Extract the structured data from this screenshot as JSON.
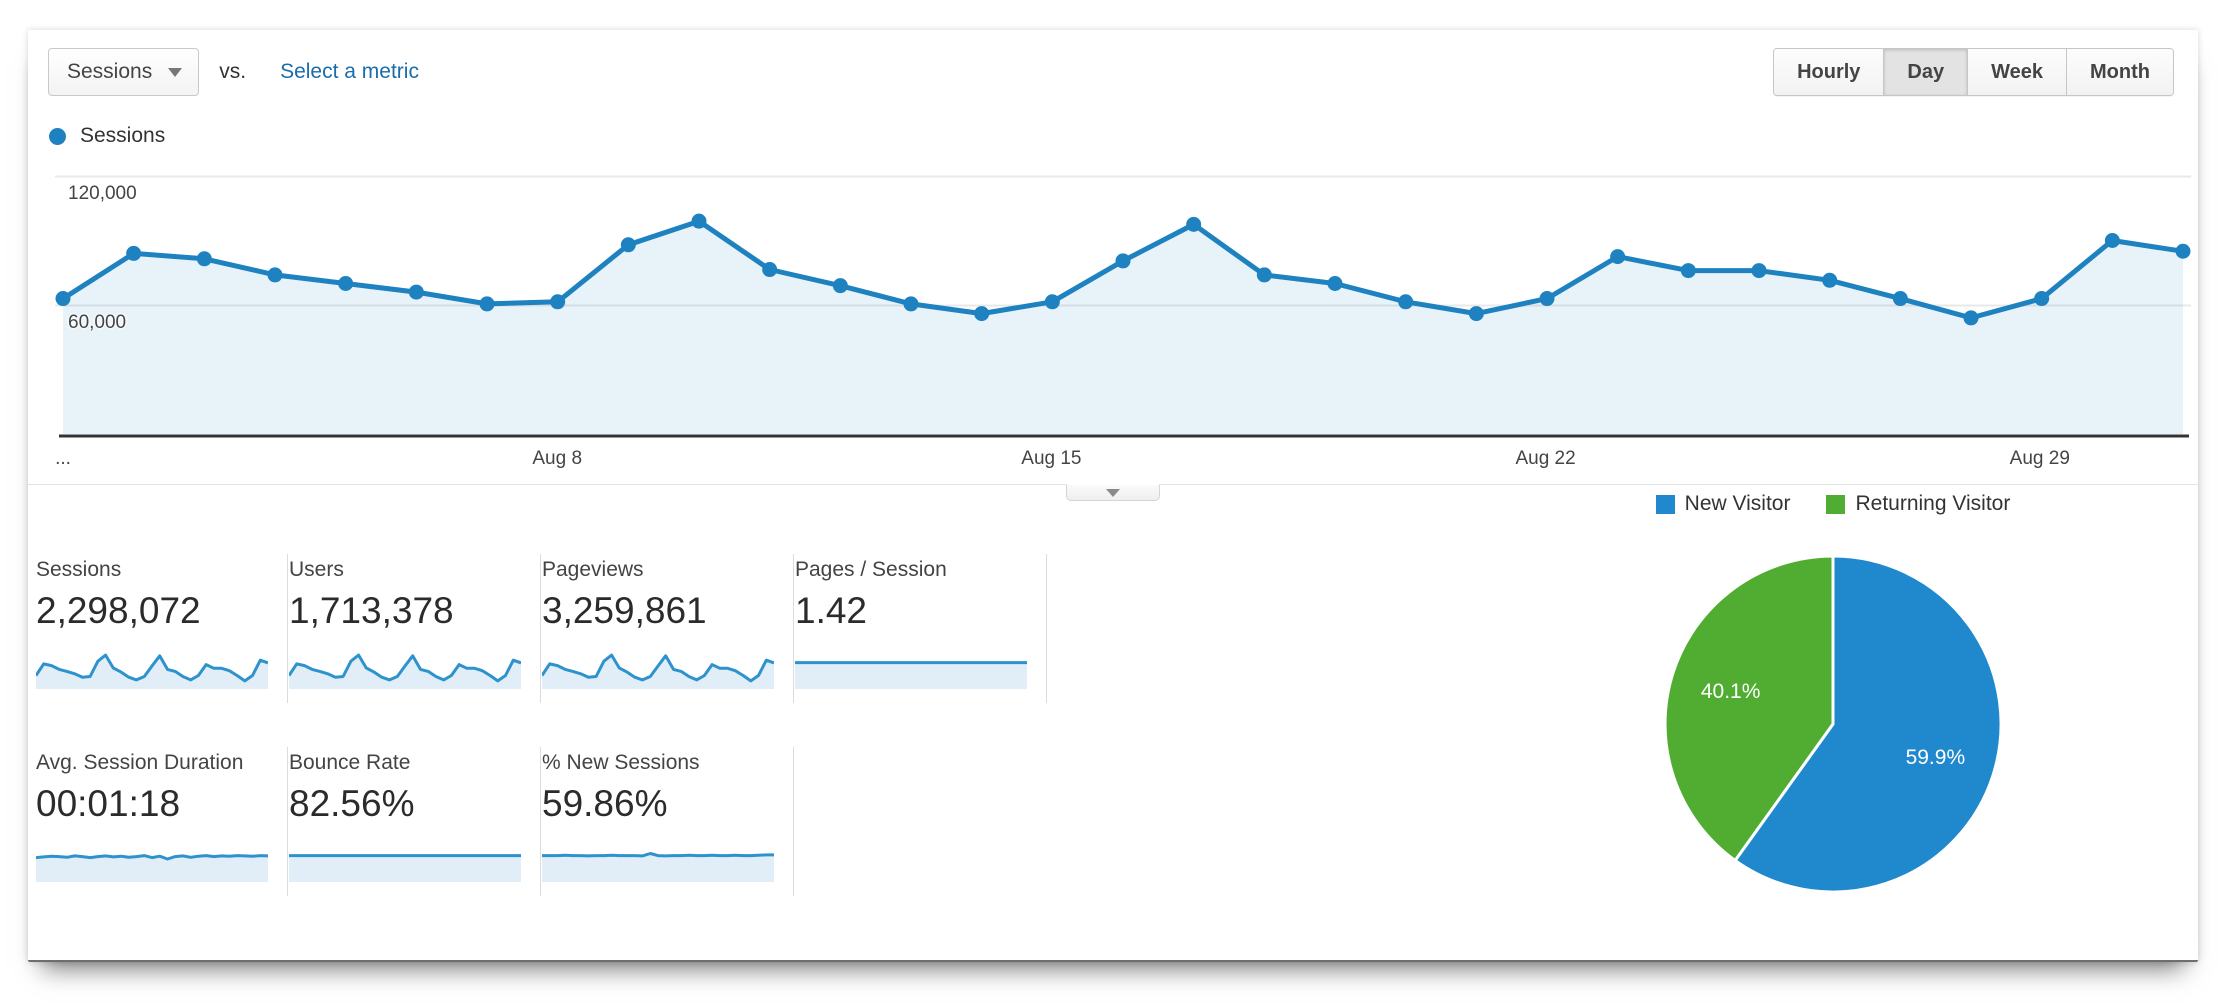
{
  "toolbar": {
    "metric_select": {
      "label": "Sessions"
    },
    "vs_label": "vs.",
    "select_metric_link": "Select a metric",
    "granularity": {
      "options": [
        "Hourly",
        "Day",
        "Week",
        "Month"
      ],
      "selected": "Day"
    }
  },
  "legend": {
    "label": "Sessions",
    "color": "#1e82c0"
  },
  "chart_data": [
    {
      "type": "line",
      "title": "Sessions by day",
      "legend": "Sessions",
      "x_ticks": [
        {
          "pos": 0,
          "label": "..."
        },
        {
          "pos": 7,
          "label": "Aug 8"
        },
        {
          "pos": 14,
          "label": "Aug 15"
        },
        {
          "pos": 21,
          "label": "Aug 22"
        },
        {
          "pos": 28,
          "label": "Aug 29"
        }
      ],
      "y_ticks": [
        {
          "value": 60000,
          "label": "60,000"
        },
        {
          "value": 120000,
          "label": "120,000"
        }
      ],
      "ylim": [
        0,
        124000
      ],
      "grid": true,
      "values": [
        63000,
        84000,
        81500,
        74000,
        70000,
        66000,
        60500,
        61500,
        88000,
        99000,
        76500,
        69000,
        60500,
        56000,
        61500,
        80500,
        97500,
        74000,
        70000,
        61500,
        56000,
        63000,
        82500,
        76000,
        76000,
        71500,
        63000,
        54000,
        63000,
        90000,
        85000
      ],
      "line_color": "#1e82c0",
      "fill_color": "rgba(32,130,192,0.10)"
    },
    {
      "type": "pie",
      "legend_position": "top",
      "slices": [
        {
          "label": "New Visitor",
          "value": 59.9,
          "display": "59.9%",
          "color": "#2089ce"
        },
        {
          "label": "Returning Visitor",
          "value": 40.1,
          "display": "40.1%",
          "color": "#51ad32"
        }
      ]
    }
  ],
  "scorecards": [
    {
      "label": "Sessions",
      "value": "2,298,072",
      "spark": "wave"
    },
    {
      "label": "Users",
      "value": "1,713,378",
      "spark": "wave"
    },
    {
      "label": "Pageviews",
      "value": "3,259,861",
      "spark": "wave"
    },
    {
      "label": "Pages / Session",
      "value": "1.42",
      "spark": "flat"
    },
    {
      "label": "Avg. Session Duration",
      "value": "00:01:18",
      "spark": "noisy"
    },
    {
      "label": "Bounce Rate",
      "value": "82.56%",
      "spark": "flat"
    },
    {
      "label": "% New Sessions",
      "value": "59.86%",
      "spark": "flat_bump"
    }
  ],
  "sparklines": {
    "wave": [
      0.28,
      0.62,
      0.57,
      0.46,
      0.4,
      0.33,
      0.23,
      0.25,
      0.7,
      0.88,
      0.5,
      0.38,
      0.23,
      0.15,
      0.25,
      0.56,
      0.86,
      0.46,
      0.4,
      0.25,
      0.15,
      0.28,
      0.6,
      0.49,
      0.49,
      0.42,
      0.28,
      0.12,
      0.28,
      0.73,
      0.65
    ],
    "flat": [
      0.66,
      0.66,
      0.66,
      0.66,
      0.66,
      0.66,
      0.66,
      0.66,
      0.66,
      0.66,
      0.66,
      0.66,
      0.66,
      0.66,
      0.66,
      0.66,
      0.66,
      0.66,
      0.66,
      0.66,
      0.66,
      0.66,
      0.66,
      0.66,
      0.66,
      0.66,
      0.66,
      0.66,
      0.66,
      0.66,
      0.66
    ],
    "noisy": [
      0.6,
      0.62,
      0.64,
      0.63,
      0.61,
      0.65,
      0.63,
      0.6,
      0.63,
      0.65,
      0.62,
      0.64,
      0.61,
      0.63,
      0.66,
      0.6,
      0.64,
      0.56,
      0.63,
      0.65,
      0.61,
      0.64,
      0.66,
      0.63,
      0.65,
      0.64,
      0.66,
      0.65,
      0.64,
      0.66,
      0.65
    ],
    "flat_bump": [
      0.66,
      0.66,
      0.66,
      0.67,
      0.66,
      0.66,
      0.65,
      0.66,
      0.66,
      0.67,
      0.66,
      0.66,
      0.66,
      0.65,
      0.72,
      0.66,
      0.65,
      0.66,
      0.66,
      0.67,
      0.66,
      0.66,
      0.67,
      0.66,
      0.66,
      0.67,
      0.66,
      0.66,
      0.67,
      0.68,
      0.68
    ]
  },
  "spark_style": {
    "line_color": "#2e93cc",
    "fill_color": "#e1eef8"
  }
}
